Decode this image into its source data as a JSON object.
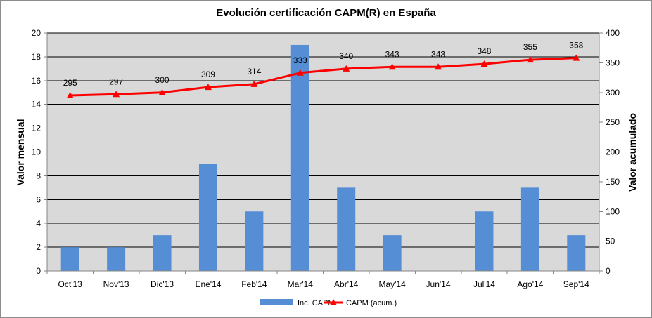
{
  "chart_data": {
    "type": "bar",
    "title": "Evolución certificación CAPM(R) en España",
    "ylabel": "Valor mensual",
    "y2label": "Valor acumulado",
    "categories": [
      "Oct'13",
      "Nov'13",
      "Dic'13",
      "Ene'14",
      "Feb'14",
      "Mar'14",
      "Abr'14",
      "May'14",
      "Jun'14",
      "Jul'14",
      "Ago'14",
      "Sep'14"
    ],
    "ylim": [
      0,
      20
    ],
    "yticks": [
      "0",
      "2",
      "4",
      "6",
      "8",
      "10",
      "12",
      "14",
      "16",
      "18",
      "20"
    ],
    "y2lim": [
      0,
      400
    ],
    "y2ticks": [
      "0",
      "50",
      "100",
      "150",
      "200",
      "250",
      "300",
      "350",
      "400"
    ],
    "grid": true,
    "legend_position": "bottom",
    "series": [
      {
        "name": "Inc. CAPM",
        "type": "bar",
        "axis": "left",
        "color": "#558ed5",
        "values": [
          2,
          2,
          3,
          9,
          5,
          19,
          7,
          3,
          0,
          5,
          7,
          3
        ]
      },
      {
        "name": "CAPM (acum.)",
        "type": "line",
        "axis": "right",
        "color": "#ff0000",
        "marker": "triangle",
        "values": [
          295,
          297,
          300,
          309,
          314,
          333,
          340,
          343,
          343,
          348,
          355,
          358
        ],
        "data_labels": [
          "295",
          "297",
          "300",
          "309",
          "314",
          "333",
          "340",
          "343",
          "343",
          "348",
          "355",
          "358"
        ]
      }
    ]
  }
}
